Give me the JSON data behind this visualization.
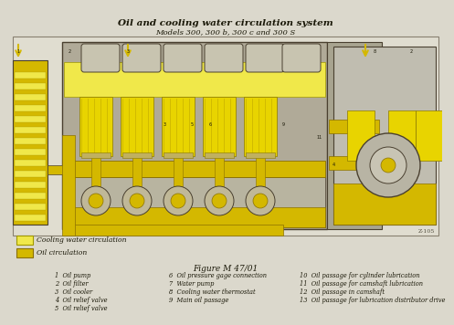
{
  "title": "Oil and cooling water circulation system",
  "subtitle": "Models 300, 300 b, 300 c and 300 S",
  "figure_label": "Figure M 47/01",
  "figure_id": "Z-105",
  "bg_color": "#dbd8cc",
  "engine_bg": "#ccc9bb",
  "yellow_light": "#f0e84a",
  "yellow_dark": "#d4b800",
  "yellow_mid": "#e8d400",
  "gray_body": "#a8a090",
  "dark_line": "#4a4030",
  "legend_items": [
    {
      "label": "Cooling water circulation",
      "color": "#f0e84a",
      "edge": "#b09820"
    },
    {
      "label": "Oil circulation",
      "color": "#d4b800",
      "edge": "#8a7000"
    }
  ],
  "numbered_items_col1": [
    "1  Oil pump",
    "2  Oil filter",
    "3  Oil cooler",
    "4  Oil relief valve",
    "5  Oil relief valve"
  ],
  "numbered_items_col2": [
    "6  Oil pressure gage connection",
    "7  Water pump",
    "8  Cooling water thermostat",
    "9  Main oil passage"
  ],
  "numbered_items_col3": [
    "10  Oil passage for cylinder lubrication",
    "11  Oil passage for camshaft lubrication",
    "12  Oil passage in camshaft",
    "13  Oil passage for lubrication distributor drive"
  ],
  "title_fontsize": 7.5,
  "subtitle_fontsize": 6.0,
  "label_fontsize": 4.8,
  "figure_fontsize": 6.5
}
